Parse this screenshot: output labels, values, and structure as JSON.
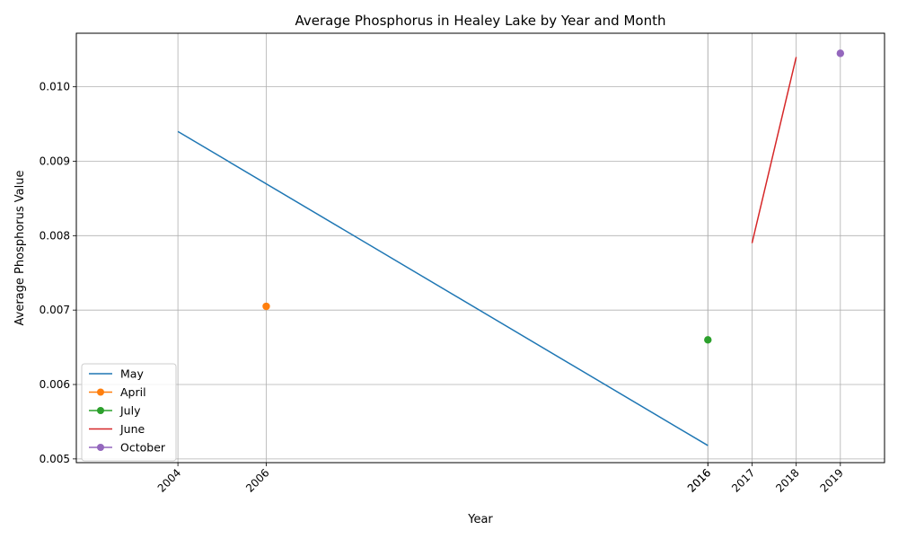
{
  "chart_data": {
    "type": "line",
    "title": "Average Phosphorus in Healey Lake by Year and Month",
    "xlabel": "Year",
    "ylabel": "Average Phosphorus Value",
    "xlim": [
      2001.7,
      2020.0
    ],
    "ylim": [
      0.00495,
      0.01072
    ],
    "x_ticks": [
      "2004",
      "2006",
      "2016",
      "2016",
      "2017",
      "2018",
      "2019"
    ],
    "x_tick_values": [
      2004,
      2006,
      2016,
      2016,
      2017,
      2018,
      2019
    ],
    "y_ticks": [
      "0.005",
      "0.006",
      "0.007",
      "0.008",
      "0.009",
      "0.010"
    ],
    "y_tick_values": [
      0.005,
      0.006,
      0.007,
      0.008,
      0.009,
      0.01
    ],
    "grid": true,
    "legend_position": "lower-left",
    "series": [
      {
        "name": "May",
        "color": "#1f77b4",
        "marker": false,
        "x": [
          2004,
          2016
        ],
        "y": [
          0.0094,
          0.00518
        ]
      },
      {
        "name": "April",
        "color": "#ff7f0e",
        "marker": true,
        "x": [
          2006
        ],
        "y": [
          0.00705
        ]
      },
      {
        "name": "July",
        "color": "#2ca02c",
        "marker": true,
        "x": [
          2016
        ],
        "y": [
          0.0066
        ]
      },
      {
        "name": "June",
        "color": "#d62728",
        "marker": false,
        "x": [
          2017,
          2018
        ],
        "y": [
          0.0079,
          0.0104
        ]
      },
      {
        "name": "October",
        "color": "#9467bd",
        "marker": true,
        "x": [
          2019
        ],
        "y": [
          0.01045
        ]
      }
    ]
  }
}
